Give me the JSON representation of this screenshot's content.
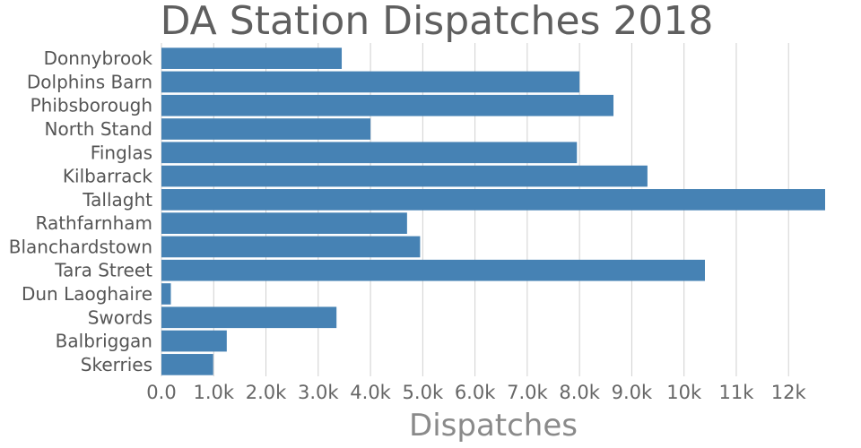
{
  "chart_data": {
    "type": "bar",
    "orientation": "horizontal",
    "title": "DA Station Dispatches 2018",
    "xlabel": "Dispatches",
    "ylabel": "",
    "categories": [
      "Donnybrook",
      "Dolphins Barn",
      "Phibsborough",
      "North Stand",
      "Finglas",
      "Kilbarrack",
      "Tallaght",
      "Rathfarnham",
      "Blanchardstown",
      "Tara Street",
      "Dun Laoghaire",
      "Swords",
      "Balbriggan",
      "Skerries"
    ],
    "values": [
      3450,
      8000,
      8650,
      4000,
      7950,
      9300,
      12700,
      4700,
      4950,
      10400,
      180,
      3350,
      1250,
      990
    ],
    "xlim": [
      0,
      12700
    ],
    "xticks": [
      0,
      1000,
      2000,
      3000,
      4000,
      5000,
      6000,
      7000,
      8000,
      9000,
      10000,
      11000,
      12000
    ],
    "xtick_labels": [
      "0.0",
      "1.0k",
      "2.0k",
      "3.0k",
      "4.0k",
      "5.0k",
      "6.0k",
      "7.0k",
      "8.0k",
      "9.0k",
      "10k",
      "11k",
      "12k"
    ],
    "grid": true,
    "bar_color": "#4682b4"
  }
}
